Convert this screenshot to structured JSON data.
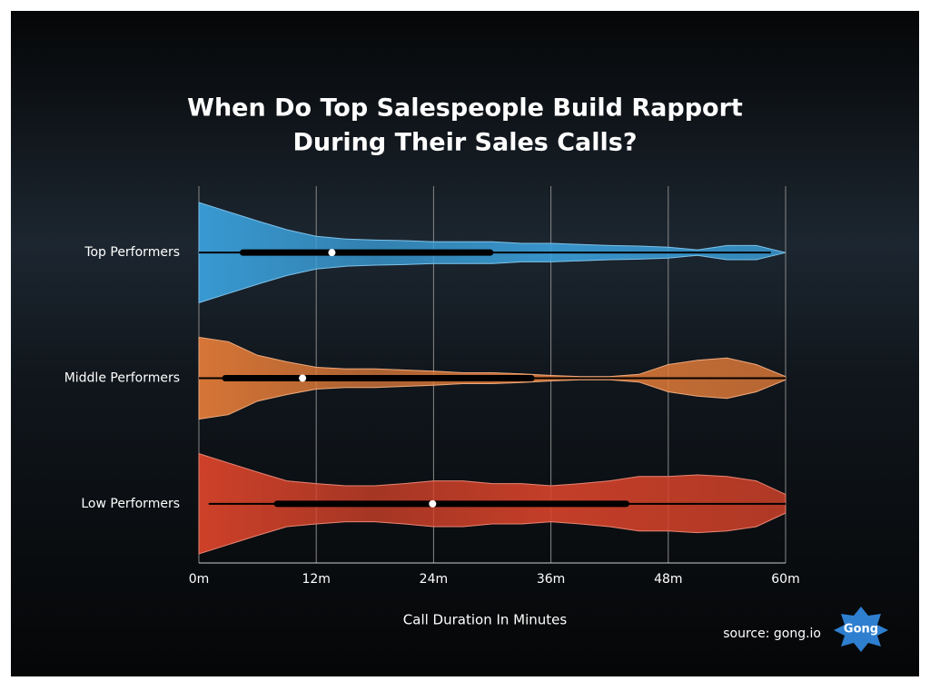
{
  "chart_data": {
    "type": "violin",
    "title": [
      "When Do Top Salespeople Build Rapport",
      "During Their Sales Calls?"
    ],
    "xlabel": "Call Duration In Minutes",
    "source": "source: gong.io",
    "logo": "Gong",
    "xlim": [
      0,
      60
    ],
    "xticks": [
      {
        "value": 0,
        "label": "0m"
      },
      {
        "value": 12,
        "label": "12m"
      },
      {
        "value": 24,
        "label": "24m"
      },
      {
        "value": 36,
        "label": "36m"
      },
      {
        "value": 48,
        "label": "48m"
      },
      {
        "value": 60,
        "label": "60m"
      }
    ],
    "grid": true,
    "density_x": [
      0,
      3,
      6,
      9,
      12,
      15,
      18,
      21,
      24,
      27,
      30,
      33,
      36,
      39,
      42,
      45,
      48,
      51,
      54,
      57,
      60
    ],
    "series": [
      {
        "name": "Top Performers",
        "color": "#3a9fda",
        "min": 0,
        "q1": 4.5,
        "median": 13.6,
        "q3": 29.8,
        "max": 58.5,
        "density": [
          0.92,
          0.75,
          0.58,
          0.42,
          0.3,
          0.25,
          0.23,
          0.22,
          0.2,
          0.2,
          0.2,
          0.17,
          0.17,
          0.15,
          0.13,
          0.12,
          0.1,
          0.05,
          0.13,
          0.13,
          0
        ]
      },
      {
        "name": "Middle Performers",
        "color": "#e07a38",
        "min": 0,
        "q1": 2.7,
        "median": 10.6,
        "q3": 34,
        "max": 60,
        "density": [
          0.75,
          0.67,
          0.42,
          0.3,
          0.2,
          0.17,
          0.17,
          0.15,
          0.13,
          0.1,
          0.1,
          0.08,
          0.05,
          0.03,
          0.03,
          0.07,
          0.25,
          0.33,
          0.37,
          0.25,
          0.03
        ]
      },
      {
        "name": "Low Performers",
        "color": "#d8432a",
        "min": 1,
        "q1": 8,
        "median": 23.9,
        "q3": 43.7,
        "max": 60,
        "density": [
          0.92,
          0.75,
          0.58,
          0.42,
          0.37,
          0.33,
          0.33,
          0.37,
          0.42,
          0.42,
          0.37,
          0.37,
          0.33,
          0.37,
          0.42,
          0.5,
          0.5,
          0.53,
          0.5,
          0.42,
          0.17
        ]
      }
    ]
  }
}
